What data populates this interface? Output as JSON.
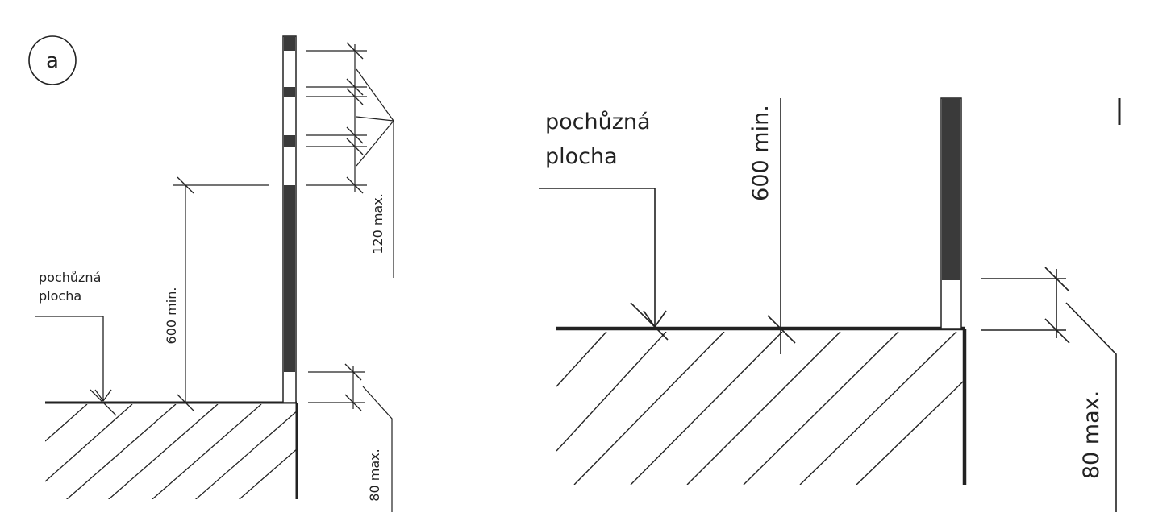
{
  "panel_a": {
    "badge": "a",
    "surface_label_line1": "pochůzná",
    "surface_label_line2": "plocha",
    "dim_height": "600 min.",
    "dim_gap": "120 max.",
    "dim_bottom_gap": "80 max."
  },
  "panel_b": {
    "surface_label_line1": "pochůzná",
    "surface_label_line2": "plocha",
    "dim_height": "600 min.",
    "dim_bottom_gap": "80 max."
  },
  "colors": {
    "ink": "#222222",
    "post": "#3a3a3a",
    "background": "#ffffff"
  }
}
